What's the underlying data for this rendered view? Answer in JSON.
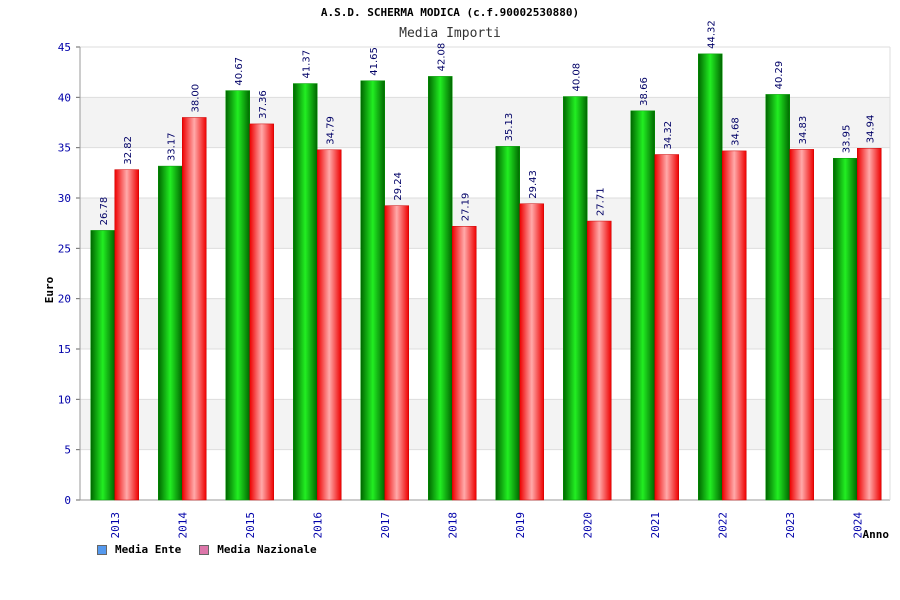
{
  "chart_data": {
    "type": "bar",
    "title": "A.S.D. SCHERMA MODICA (c.f.90002530880)",
    "subtitle": "Media Importi",
    "xlabel": "Anno",
    "ylabel": "Euro",
    "ylim": [
      0,
      45
    ],
    "yticks": [
      0,
      5,
      10,
      15,
      20,
      25,
      30,
      35,
      40,
      45
    ],
    "grid": true,
    "legend_placement": "bottom-left",
    "categories": [
      "2013",
      "2014",
      "2015",
      "2016",
      "2017",
      "2018",
      "2019",
      "2020",
      "2021",
      "2022",
      "2023",
      "2024"
    ],
    "series": [
      {
        "name": "Media Ente",
        "values": [
          26.78,
          33.17,
          40.67,
          41.37,
          41.65,
          42.08,
          35.13,
          40.08,
          38.66,
          44.32,
          40.29,
          33.95
        ],
        "labels": [
          "26.78",
          "33.17",
          "40.67",
          "41.37",
          "41.65",
          "42.08",
          "35.13",
          "40.08",
          "38.66",
          "44.32",
          "40.29",
          "33.95"
        ],
        "color": "#00c000",
        "legend_color": "#5599ee"
      },
      {
        "name": "Media Nazionale",
        "values": [
          32.82,
          38.0,
          37.36,
          34.79,
          29.24,
          27.19,
          29.43,
          27.71,
          34.32,
          34.68,
          34.83,
          34.94
        ],
        "labels": [
          "32.82",
          "38.00",
          "37.36",
          "34.79",
          "29.24",
          "27.19",
          "29.43",
          "27.71",
          "34.32",
          "34.68",
          "34.83",
          "34.94"
        ],
        "color": "#ff2020",
        "legend_color": "#dd77aa"
      }
    ]
  }
}
